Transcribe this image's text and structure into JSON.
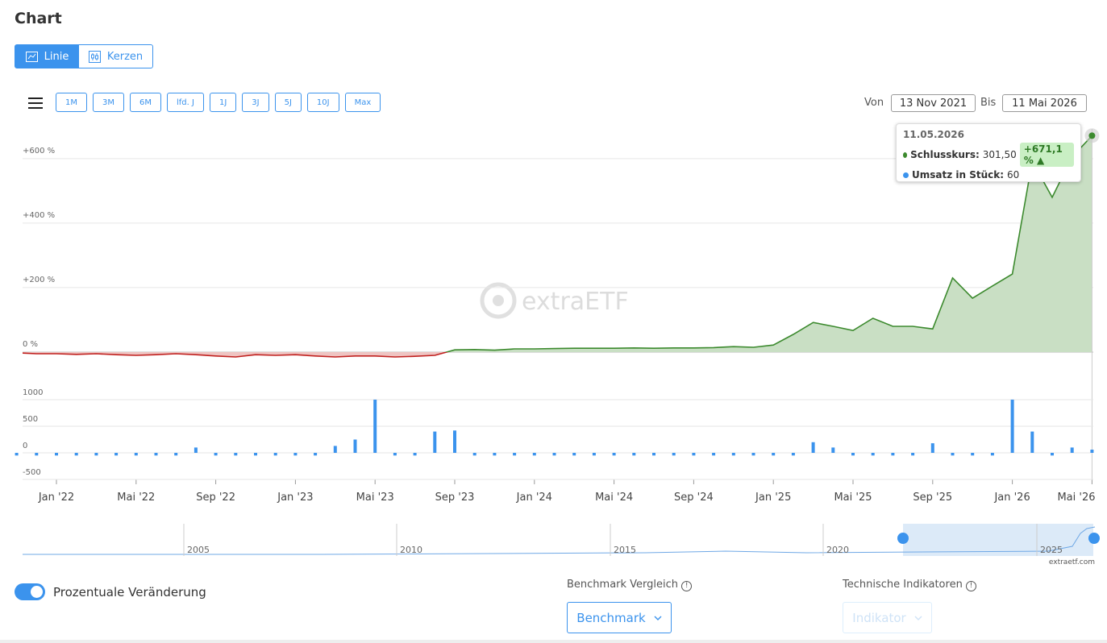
{
  "header": {
    "title": "Chart"
  },
  "view_toggle": [
    "Linie",
    "Kerzen"
  ],
  "ranges": [
    "1M",
    "3M",
    "6M",
    "lfd. J",
    "1J",
    "3J",
    "5J",
    "10J",
    "Max"
  ],
  "date_range": {
    "from_label": "Von",
    "from": "13 Nov 2021",
    "to_label": "Bis",
    "to": "11 Mai 2026"
  },
  "watermark": "extraETF",
  "chart_data": [
    {
      "type": "line",
      "x": [
        "2021-11",
        "2021-12",
        "2022-01",
        "2022-02",
        "2022-03",
        "2022-04",
        "2022-05",
        "2022-06",
        "2022-07",
        "2022-08",
        "2022-09",
        "2022-10",
        "2022-11",
        "2022-12",
        "2023-01",
        "2023-02",
        "2023-03",
        "2023-04",
        "2023-05",
        "2023-06",
        "2023-07",
        "2023-08",
        "2023-09",
        "2023-10",
        "2023-11",
        "2023-12",
        "2024-01",
        "2024-02",
        "2024-03",
        "2024-04",
        "2024-05",
        "2024-06",
        "2024-07",
        "2024-08",
        "2024-09",
        "2024-10",
        "2024-11",
        "2024-12",
        "2025-01",
        "2025-02",
        "2025-03",
        "2025-04",
        "2025-05",
        "2025-06",
        "2025-07",
        "2025-08",
        "2025-09",
        "2025-10",
        "2025-11",
        "2025-12",
        "2026-01",
        "2026-02",
        "2026-03",
        "2026-04",
        "2026-05"
      ],
      "series": [
        {
          "color": "#3c8a2e",
          "negative_color": "#c0201e",
          "area_color": "#c9dfc4",
          "negative_area_color": "#efc4c2",
          "values": [
            -2,
            -5,
            -5,
            -7,
            -5,
            -8,
            -10,
            -8,
            -5,
            -8,
            -12,
            -15,
            -8,
            -10,
            -8,
            -12,
            -15,
            -12,
            -12,
            -15,
            -13,
            -10,
            7,
            8,
            6,
            10,
            10,
            11,
            12,
            12,
            12,
            13,
            12,
            13,
            13,
            14,
            17,
            15,
            22,
            55,
            92,
            80,
            67,
            105,
            80,
            80,
            72,
            230,
            167,
            205,
            242,
            592,
            480,
            605,
            671.1
          ]
        }
      ],
      "ylim": [
        -60,
        702
      ],
      "yticks": [
        {
          "value": 0,
          "label": "0 %"
        },
        {
          "value": 200,
          "label": "+200 %"
        },
        {
          "value": 400,
          "label": "+400 %"
        },
        {
          "value": 600,
          "label": "+600 %"
        }
      ],
      "xticks": [
        {
          "value": "2022-01",
          "label": "Jan '22"
        },
        {
          "value": "2022-05",
          "label": "Mai '22"
        },
        {
          "value": "2022-09",
          "label": "Sep '22"
        },
        {
          "value": "2023-01",
          "label": "Jan '23"
        },
        {
          "value": "2023-05",
          "label": "Mai '23"
        },
        {
          "value": "2023-09",
          "label": "Sep '23"
        },
        {
          "value": "2024-01",
          "label": "Jan '24"
        },
        {
          "value": "2024-05",
          "label": "Mai '24"
        },
        {
          "value": "2024-09",
          "label": "Sep '24"
        },
        {
          "value": "2025-01",
          "label": "Jan '25"
        },
        {
          "value": "2025-05",
          "label": "Mai '25"
        },
        {
          "value": "2025-09",
          "label": "Sep '25"
        },
        {
          "value": "2026-01",
          "label": "Jan '26"
        },
        {
          "value": "2026-05",
          "label": "Mai '26"
        }
      ],
      "grid": true
    },
    {
      "type": "bar",
      "series": [
        {
          "color": "#3b93ed",
          "values": [
            -50,
            -50,
            -50,
            -50,
            -50,
            -50,
            -50,
            -50,
            -50,
            100,
            -50,
            -50,
            -50,
            -50,
            -50,
            -50,
            130,
            250,
            1000,
            -50,
            -50,
            400,
            420,
            -50,
            -50,
            -50,
            -50,
            -50,
            -50,
            -50,
            -50,
            -50,
            -50,
            -50,
            -50,
            -50,
            -50,
            -50,
            -50,
            -50,
            200,
            100,
            -50,
            -50,
            -50,
            -50,
            180,
            -50,
            -50,
            -50,
            1000,
            400,
            -50,
            100,
            60
          ]
        }
      ],
      "ylim": [
        -515,
        1242
      ],
      "yticks": [
        -500,
        0,
        500,
        1000
      ],
      "grid": true
    }
  ],
  "tooltip": {
    "date": "11.05.2026",
    "rows": [
      {
        "label": "Schlusskurs:",
        "value": "301,50",
        "change": "+671,1 %"
      },
      {
        "label": "Umsatz in Stück:",
        "value": "60"
      }
    ]
  },
  "navigator": {
    "labels": [
      "2005",
      "2010",
      "2015",
      "2020",
      "2025"
    ],
    "credit": "extraetf.com"
  },
  "controls": {
    "toggle_label": "Prozentuale Veränderung",
    "benchmark_title": "Benchmark Vergleich",
    "benchmark_button": "Benchmark",
    "indicator_title": "Technische Indikatoren",
    "indicator_button": "Indikator"
  }
}
